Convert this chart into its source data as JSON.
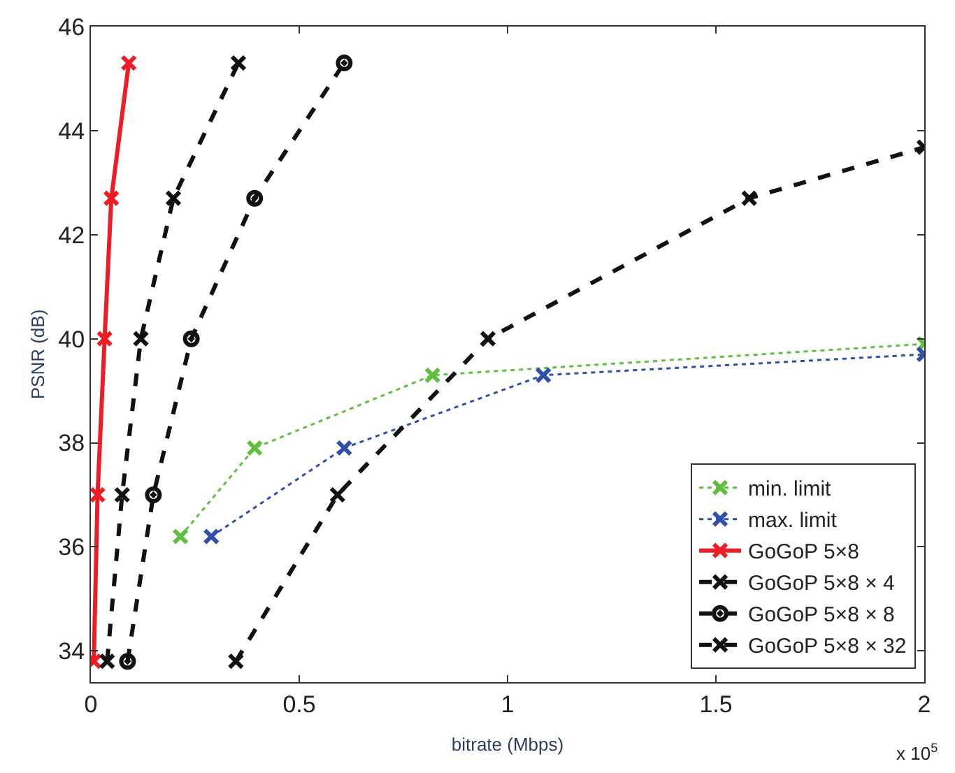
{
  "chart_data": {
    "type": "line",
    "xlabel": "bitrate (Mbps)",
    "ylabel": "PSNR (dB)",
    "xlim": [
      0,
      2
    ],
    "xticks": [
      0,
      0.5,
      1,
      1.5,
      2
    ],
    "ylim": [
      33.4,
      46
    ],
    "yticks": [
      34,
      36,
      38,
      40,
      42,
      44,
      46
    ],
    "legend": "bottom right",
    "annotations": [
      "x 10$^{5}$"
    ],
    "series": [
      {
        "name": "min. limit",
        "color": "#5fbf3f",
        "line_style": "dotted",
        "marker": "cross",
        "x": [
          0.215,
          0.393,
          0.82,
          2.0
        ],
        "values": [
          36.2,
          37.9,
          39.3,
          39.9
        ]
      },
      {
        "name": "max. limit",
        "color": "#2f4fa8",
        "line_style": "dotted",
        "marker": "cross",
        "x": [
          0.289,
          0.608,
          1.086,
          2.0
        ],
        "values": [
          36.2,
          37.9,
          39.3,
          39.7
        ]
      },
      {
        "name": "GoGoP 5×8",
        "color": "#ee1c24",
        "line_style": "solid",
        "marker": "cross",
        "x": [
          0.007,
          0.016,
          0.033,
          0.049,
          0.091
        ],
        "values": [
          33.8,
          37.0,
          40.0,
          42.7,
          45.3
        ]
      },
      {
        "name": "GoGoP 5×8 × 4",
        "color": "#111111",
        "line_style": "dashed",
        "marker": "cross",
        "x": [
          0.039,
          0.075,
          0.12,
          0.198,
          0.354
        ],
        "values": [
          33.8,
          37.0,
          40.0,
          42.7,
          45.3
        ]
      },
      {
        "name": "GoGoP 5×8 × 8",
        "color": "#111111",
        "line_style": "dashed",
        "marker": "circle",
        "x": [
          0.088,
          0.15,
          0.241,
          0.393,
          0.608
        ],
        "values": [
          33.8,
          37.0,
          40.0,
          42.7,
          45.3
        ]
      },
      {
        "name": "GoGoP 5×8 × 32",
        "color": "#111111",
        "line_style": "dashed",
        "marker": "cross",
        "x": [
          0.348,
          0.592,
          0.953,
          1.58,
          2.0
        ],
        "values": [
          33.8,
          37.0,
          40.0,
          42.7,
          43.68
        ]
      }
    ]
  }
}
